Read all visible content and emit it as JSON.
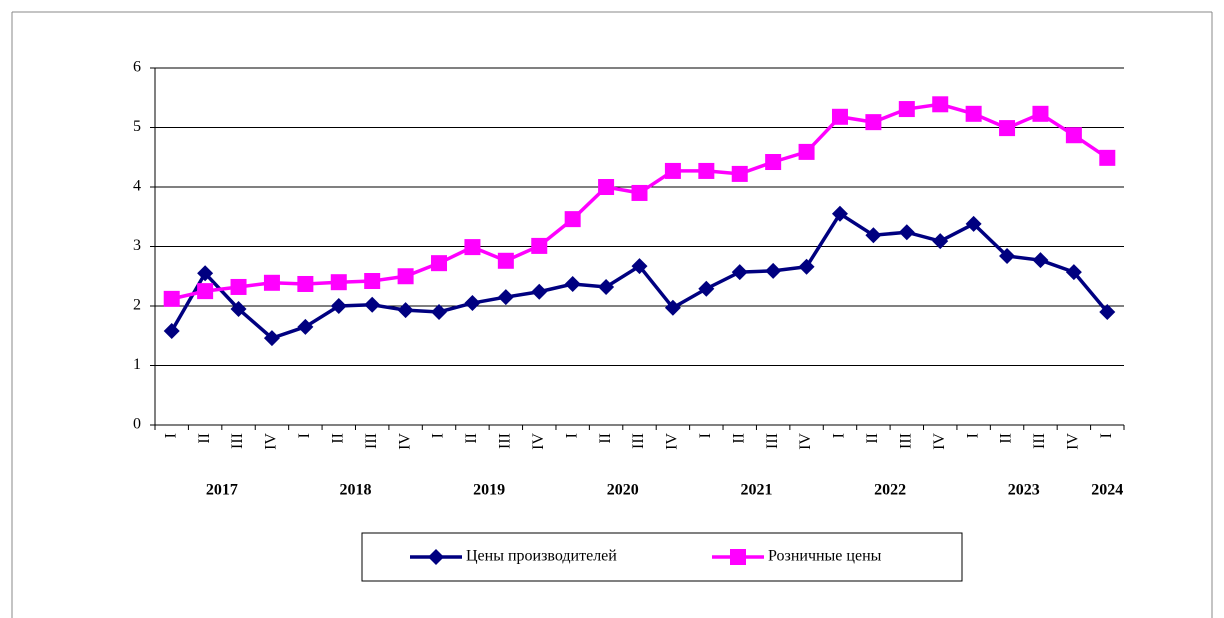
{
  "chart_data": {
    "type": "line",
    "categories": [
      "I",
      "II",
      "III",
      "IV",
      "I",
      "II",
      "III",
      "IV",
      "I",
      "II",
      "III",
      "IV",
      "I",
      "II",
      "III",
      "IV",
      "I",
      "II",
      "III",
      "IV",
      "I",
      "II",
      "III",
      "IV",
      "I",
      "II",
      "III",
      "IV",
      "I"
    ],
    "years": [
      "2017",
      null,
      null,
      null,
      "2018",
      null,
      null,
      null,
      "2019",
      null,
      null,
      null,
      "2020",
      null,
      null,
      null,
      "2021",
      null,
      null,
      null,
      "2022",
      null,
      null,
      null,
      "2023",
      null,
      null,
      null,
      "2024"
    ],
    "series": [
      {
        "name": "Цены производителей",
        "color": "#000080",
        "marker": "diamond",
        "values": [
          1.58,
          2.55,
          1.95,
          1.46,
          1.65,
          2.0,
          2.02,
          1.93,
          1.9,
          2.05,
          2.15,
          2.24,
          2.37,
          2.32,
          2.67,
          1.97,
          2.29,
          2.57,
          2.59,
          2.66,
          3.55,
          3.19,
          3.24,
          3.09,
          3.38,
          2.84,
          2.77,
          2.57,
          1.9
        ]
      },
      {
        "name": "Розничные цены",
        "color": "#ff00ff",
        "marker": "square",
        "values": [
          2.12,
          2.25,
          2.32,
          2.39,
          2.37,
          2.4,
          2.42,
          2.5,
          2.72,
          2.99,
          2.76,
          3.01,
          3.46,
          4.0,
          3.9,
          4.27,
          4.27,
          4.22,
          4.42,
          4.59,
          5.18,
          5.09,
          5.31,
          5.39,
          5.23,
          4.99,
          5.23,
          4.87,
          4.49
        ]
      }
    ],
    "ylim": [
      0,
      6
    ],
    "yticks": [
      0,
      1,
      2,
      3,
      4,
      5,
      6
    ],
    "grid": true,
    "legend": "bottom"
  }
}
